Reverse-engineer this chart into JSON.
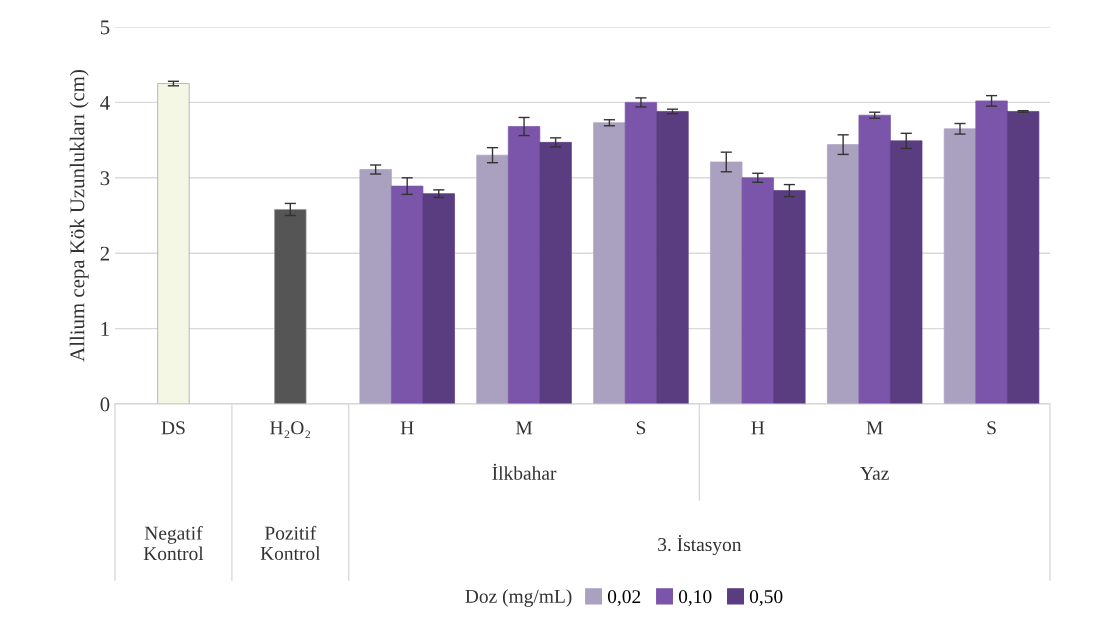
{
  "chart_data": {
    "type": "bar",
    "ylabel": "Allium cepa Kök Uzunlukları (cm)",
    "legend_title": "Doz (mg/mL)",
    "categories": [
      "DS",
      "H₂O₂",
      "H",
      "M",
      "S",
      "H",
      "M",
      "S"
    ],
    "series": [
      {
        "colors": [
          "#f4f7e4",
          "#555555",
          null,
          null,
          null,
          null,
          null,
          null
        ],
        "values": [
          4.25,
          2.58,
          null,
          null,
          null,
          null,
          null,
          null
        ],
        "errors": [
          0.03,
          0.08,
          null,
          null,
          null,
          null,
          null,
          null
        ]
      },
      {
        "name": "0,02",
        "color": "#aaa0c0",
        "values": [
          null,
          null,
          3.11,
          3.3,
          3.73,
          3.21,
          3.44,
          3.65
        ],
        "errors": [
          null,
          null,
          0.06,
          0.1,
          0.04,
          0.13,
          0.13,
          0.07
        ]
      },
      {
        "name": "0,10",
        "color": "#7b55aa",
        "values": [
          null,
          null,
          2.89,
          3.68,
          4.0,
          3.0,
          3.83,
          4.02
        ],
        "errors": [
          null,
          null,
          0.11,
          0.12,
          0.06,
          0.06,
          0.04,
          0.07
        ]
      },
      {
        "name": "0,50",
        "color": "#5a3c80",
        "values": [
          null,
          null,
          2.79,
          3.47,
          3.88,
          2.83,
          3.49,
          3.88
        ],
        "errors": [
          null,
          null,
          0.05,
          0.06,
          0.03,
          0.08,
          0.1,
          0.01
        ]
      }
    ],
    "ylim": [
      0,
      5
    ],
    "yticks": [
      0,
      1,
      2,
      3,
      4,
      5
    ],
    "grid": "y",
    "legend": "bottom",
    "annotations": [
      "İlkbahar",
      "Yaz",
      "Negatif\nKontrol",
      "Pozitif\nKontrol",
      "3. İstasyon"
    ]
  }
}
